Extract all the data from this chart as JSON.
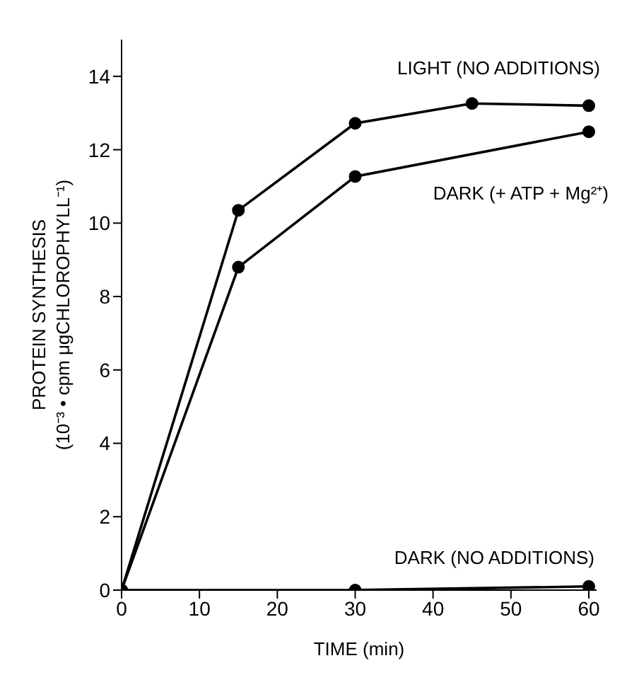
{
  "chart_data": {
    "type": "line",
    "xlabel": "TIME (min)",
    "ylabel": "PROTEIN SYNTHESIS\n(10⁻³ • cpm μgCHLOROPHYLL⁻¹)",
    "x": [
      0,
      15,
      30,
      45,
      60
    ],
    "series": [
      {
        "name": "LIGHT (NO ADDITIONS)",
        "color": "#000000",
        "values": [
          0,
          10.35,
          12.72,
          13.26,
          13.2
        ]
      },
      {
        "name": "DARK (+ ATP + Mg²⁺)",
        "color": "#000000",
        "x": [
          0,
          15,
          30,
          60
        ],
        "values": [
          0,
          8.8,
          11.27,
          12.49
        ]
      },
      {
        "name": "DARK (NO ADDITIONS)",
        "color": "#000000",
        "x": [
          0,
          30,
          60
        ],
        "values": [
          0,
          0,
          0.1
        ]
      }
    ],
    "xlim": [
      0,
      61
    ],
    "ylim": [
      0,
      15
    ],
    "xticks": [
      0,
      10,
      20,
      30,
      40,
      50,
      60
    ],
    "yticks": [
      0,
      2,
      4,
      6,
      8,
      10,
      12,
      14
    ],
    "grid": false,
    "legend": false,
    "marker": "circle",
    "line_style": "solid"
  }
}
